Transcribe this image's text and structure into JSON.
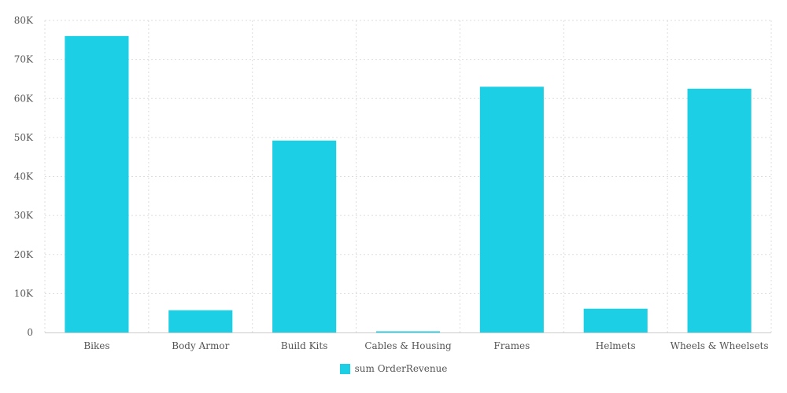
{
  "chart_data": {
    "type": "bar",
    "categories": [
      "Bikes",
      "Body Armor",
      "Build Kits",
      "Cables & Housing",
      "Frames",
      "Helmets",
      "Wheels & Wheelsets"
    ],
    "series": [
      {
        "name": "sum OrderRevenue",
        "values": [
          76000,
          5700,
          49200,
          300,
          63000,
          6100,
          62500
        ]
      }
    ],
    "ylim": [
      0,
      80000
    ],
    "yticks": [
      0,
      10000,
      20000,
      30000,
      40000,
      50000,
      60000,
      70000,
      80000
    ],
    "ytick_labels": [
      "0",
      "10K",
      "20K",
      "30K",
      "40K",
      "50K",
      "60K",
      "70K",
      "80K"
    ],
    "grid": true,
    "legend_position": "bottom-center",
    "title": "",
    "xlabel": "",
    "ylabel": ""
  },
  "colors": {
    "bar": "#1ccfe4",
    "grid": "#dddddd",
    "axis": "#cccccc",
    "text": "#555555"
  }
}
